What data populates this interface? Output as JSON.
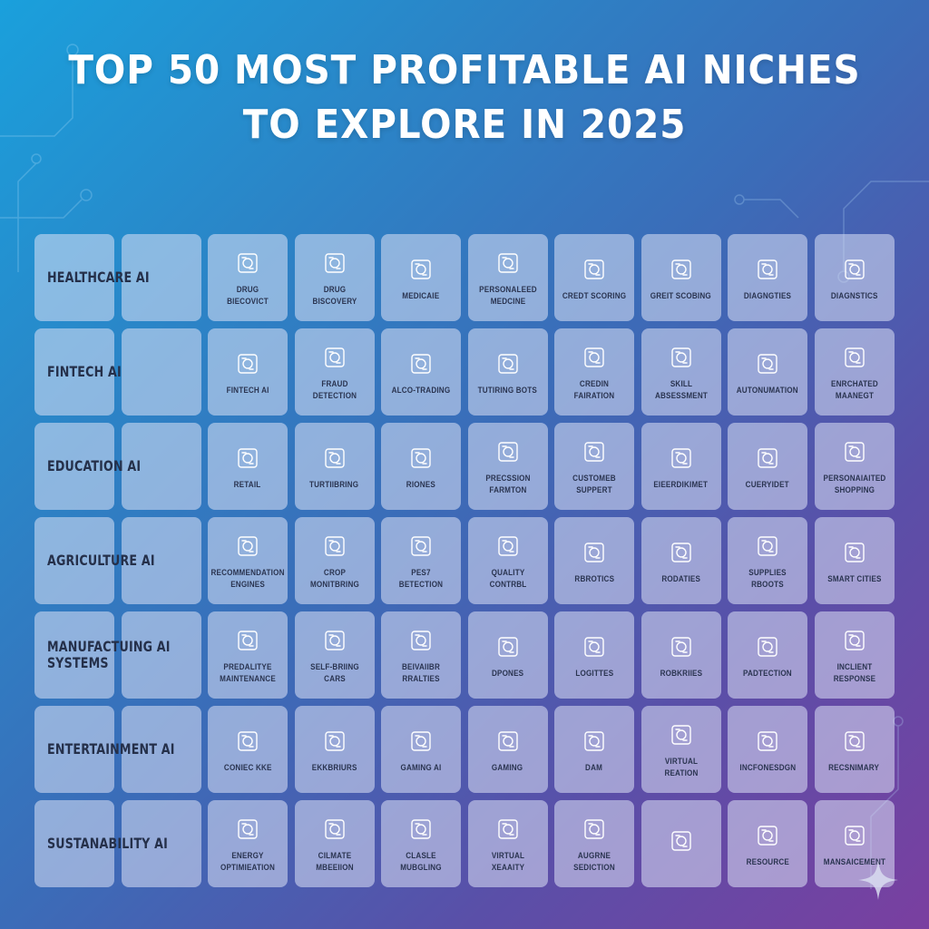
{
  "title": {
    "line1": "TOP 50 MOST PROFITABLE AI NICHES",
    "line2": "TO EXPLORE IN 2025"
  },
  "colors": {
    "background_start": "#1aa0dc",
    "background_end": "#7a3fa0",
    "card": "#dce1f5",
    "text_dark": "#25304a",
    "title": "#ffffff"
  },
  "rows": [
    {
      "category": "HEALTHCARE AI",
      "niches": [
        {
          "label": "DRUG BIECOVICT",
          "icon": "document-grid-icon"
        },
        {
          "label": "DRUG BISCOVERY",
          "icon": "hexagon-molecule-icon"
        },
        {
          "label": "MEDICAIE",
          "icon": "medical-report-icon"
        },
        {
          "label": "PERSONALEED MEDCINE",
          "icon": "molecule-link-icon"
        },
        {
          "label": "CREDT SCORING",
          "icon": "monitor-chart-icon"
        },
        {
          "label": "GREIT SCOBING",
          "icon": "scan-target-icon"
        },
        {
          "label": "DIAGNGTIES",
          "icon": "monitor-scan-icon"
        },
        {
          "label": "DIAGNSTICS",
          "icon": "circle-gear-icon"
        }
      ]
    },
    {
      "category": "FINTECH AI",
      "niches": [
        {
          "label": "FINTECH AI",
          "icon": "devices-icon"
        },
        {
          "label": "FRAUD DETECTION",
          "icon": "framed-detective-icon"
        },
        {
          "label": "ALCO-TRADING",
          "icon": "briefcase-icon"
        },
        {
          "label": "TUTIRING BOTS",
          "icon": "monitor-bot-icon"
        },
        {
          "label": "CREDIN FAIRATION",
          "icon": "data-card-icon"
        },
        {
          "label": "SKILL ABSESSMENT",
          "icon": "circular-arrows-icon"
        },
        {
          "label": "AUTONUMATION",
          "icon": "cloud-network-icon"
        },
        {
          "label": "ENRCHATED MAANEGT",
          "icon": "circuit-board-icon"
        }
      ]
    },
    {
      "category": "EDUCATION AI",
      "niches": [
        {
          "label": "RETAIL",
          "icon": "target-search-icon"
        },
        {
          "label": "TURTIIBRING",
          "icon": "growth-arrow-icon"
        },
        {
          "label": "RIONES",
          "icon": "podium-icon"
        },
        {
          "label": "PRECSSION FARMTON",
          "icon": "rocket-icon"
        },
        {
          "label": "CUSTOMEB SUPPERT",
          "icon": "headset-agent-icon"
        },
        {
          "label": "EIEERDIKIMET",
          "icon": "document-form-icon"
        },
        {
          "label": "CUERYIDET",
          "icon": "monitor-globe-icon"
        },
        {
          "label": "PERSONAIAITED SHOPPING",
          "icon": "stacked-cards-icon"
        }
      ]
    },
    {
      "category": "AGRICULTURE AI",
      "niches": [
        {
          "label": "RECOMMENDATION ENGINES",
          "icon": "focus-frame-icon"
        },
        {
          "label": "CROP MONITBRING",
          "icon": "shapes-icon"
        },
        {
          "label": "PES7 BETECTION",
          "icon": "folder-location-icon"
        },
        {
          "label": "QUALITY CONTRBL",
          "icon": "monitor-magnifier-icon"
        },
        {
          "label": "RBROTICS",
          "icon": "person-search-icon"
        },
        {
          "label": "RODATIES",
          "icon": "eye-network-icon"
        },
        {
          "label": "SUPPLIES RBOOTS",
          "icon": "calendar-lock-icon"
        },
        {
          "label": "SMART CITIES",
          "icon": "network-nodes-icon"
        }
      ]
    },
    {
      "category": "MANUFACTUING AI SYSTEMS",
      "niches": [
        {
          "label": "PREDALITYE MAINTENANCE",
          "icon": "monitor-diagram-icon"
        },
        {
          "label": "SELF-BRIING CARS",
          "icon": "vehicle-icon"
        },
        {
          "label": "BEIVAIIBR RRALTIES",
          "icon": "machine-rack-icon"
        },
        {
          "label": "DPONES",
          "icon": "drone-icon"
        },
        {
          "label": "LOGITTES",
          "icon": "tag-search-icon"
        },
        {
          "label": "ROBKRIIES",
          "icon": "tablet-chat-icon"
        },
        {
          "label": "PADTECTION",
          "icon": "ring-nodes-icon"
        },
        {
          "label": "INCLIENT RESPONSE",
          "icon": "badge-seal-icon"
        }
      ]
    },
    {
      "category": "ENTERTAINMENT AI",
      "niches": [
        {
          "label": "CONIEC KKE",
          "icon": "house-recycle-icon"
        },
        {
          "label": "EKKBRIURS",
          "icon": "dashboard-panel-icon"
        },
        {
          "label": "GAMING AI",
          "icon": "sliders-panel-icon"
        },
        {
          "label": "GAMING",
          "icon": "game-screen-icon"
        },
        {
          "label": "DAM",
          "icon": "pen-edit-icon"
        },
        {
          "label": "VIRTUAL REATION",
          "icon": "gear-chip-icon"
        },
        {
          "label": "INCFONESDGN",
          "icon": "flow-chart-icon"
        },
        {
          "label": "RECSNIMARY",
          "icon": "file-clip-icon"
        }
      ]
    },
    {
      "category": "SUSTANABILITY AI",
      "niches": [
        {
          "label": "ENERGY OPTIMIEATION",
          "icon": "binary-calendar-icon"
        },
        {
          "label": "CILMATE MBEEIION",
          "icon": "globe-badge-icon"
        },
        {
          "label": "CLASLE MUBGLING",
          "icon": "robot-station-icon"
        },
        {
          "label": "VIRTUAL XEAAITY",
          "icon": "server-stack-icon"
        },
        {
          "label": "AUGRNE SEDICTION",
          "icon": "target-rings-icon"
        },
        {
          "label": "",
          "icon": "app-grid-icon"
        },
        {
          "label": "RESOURCE",
          "icon": "terminal-window-icon"
        },
        {
          "label": "MANSAICEMENT",
          "icon": "person-presentation-icon"
        }
      ]
    }
  ]
}
